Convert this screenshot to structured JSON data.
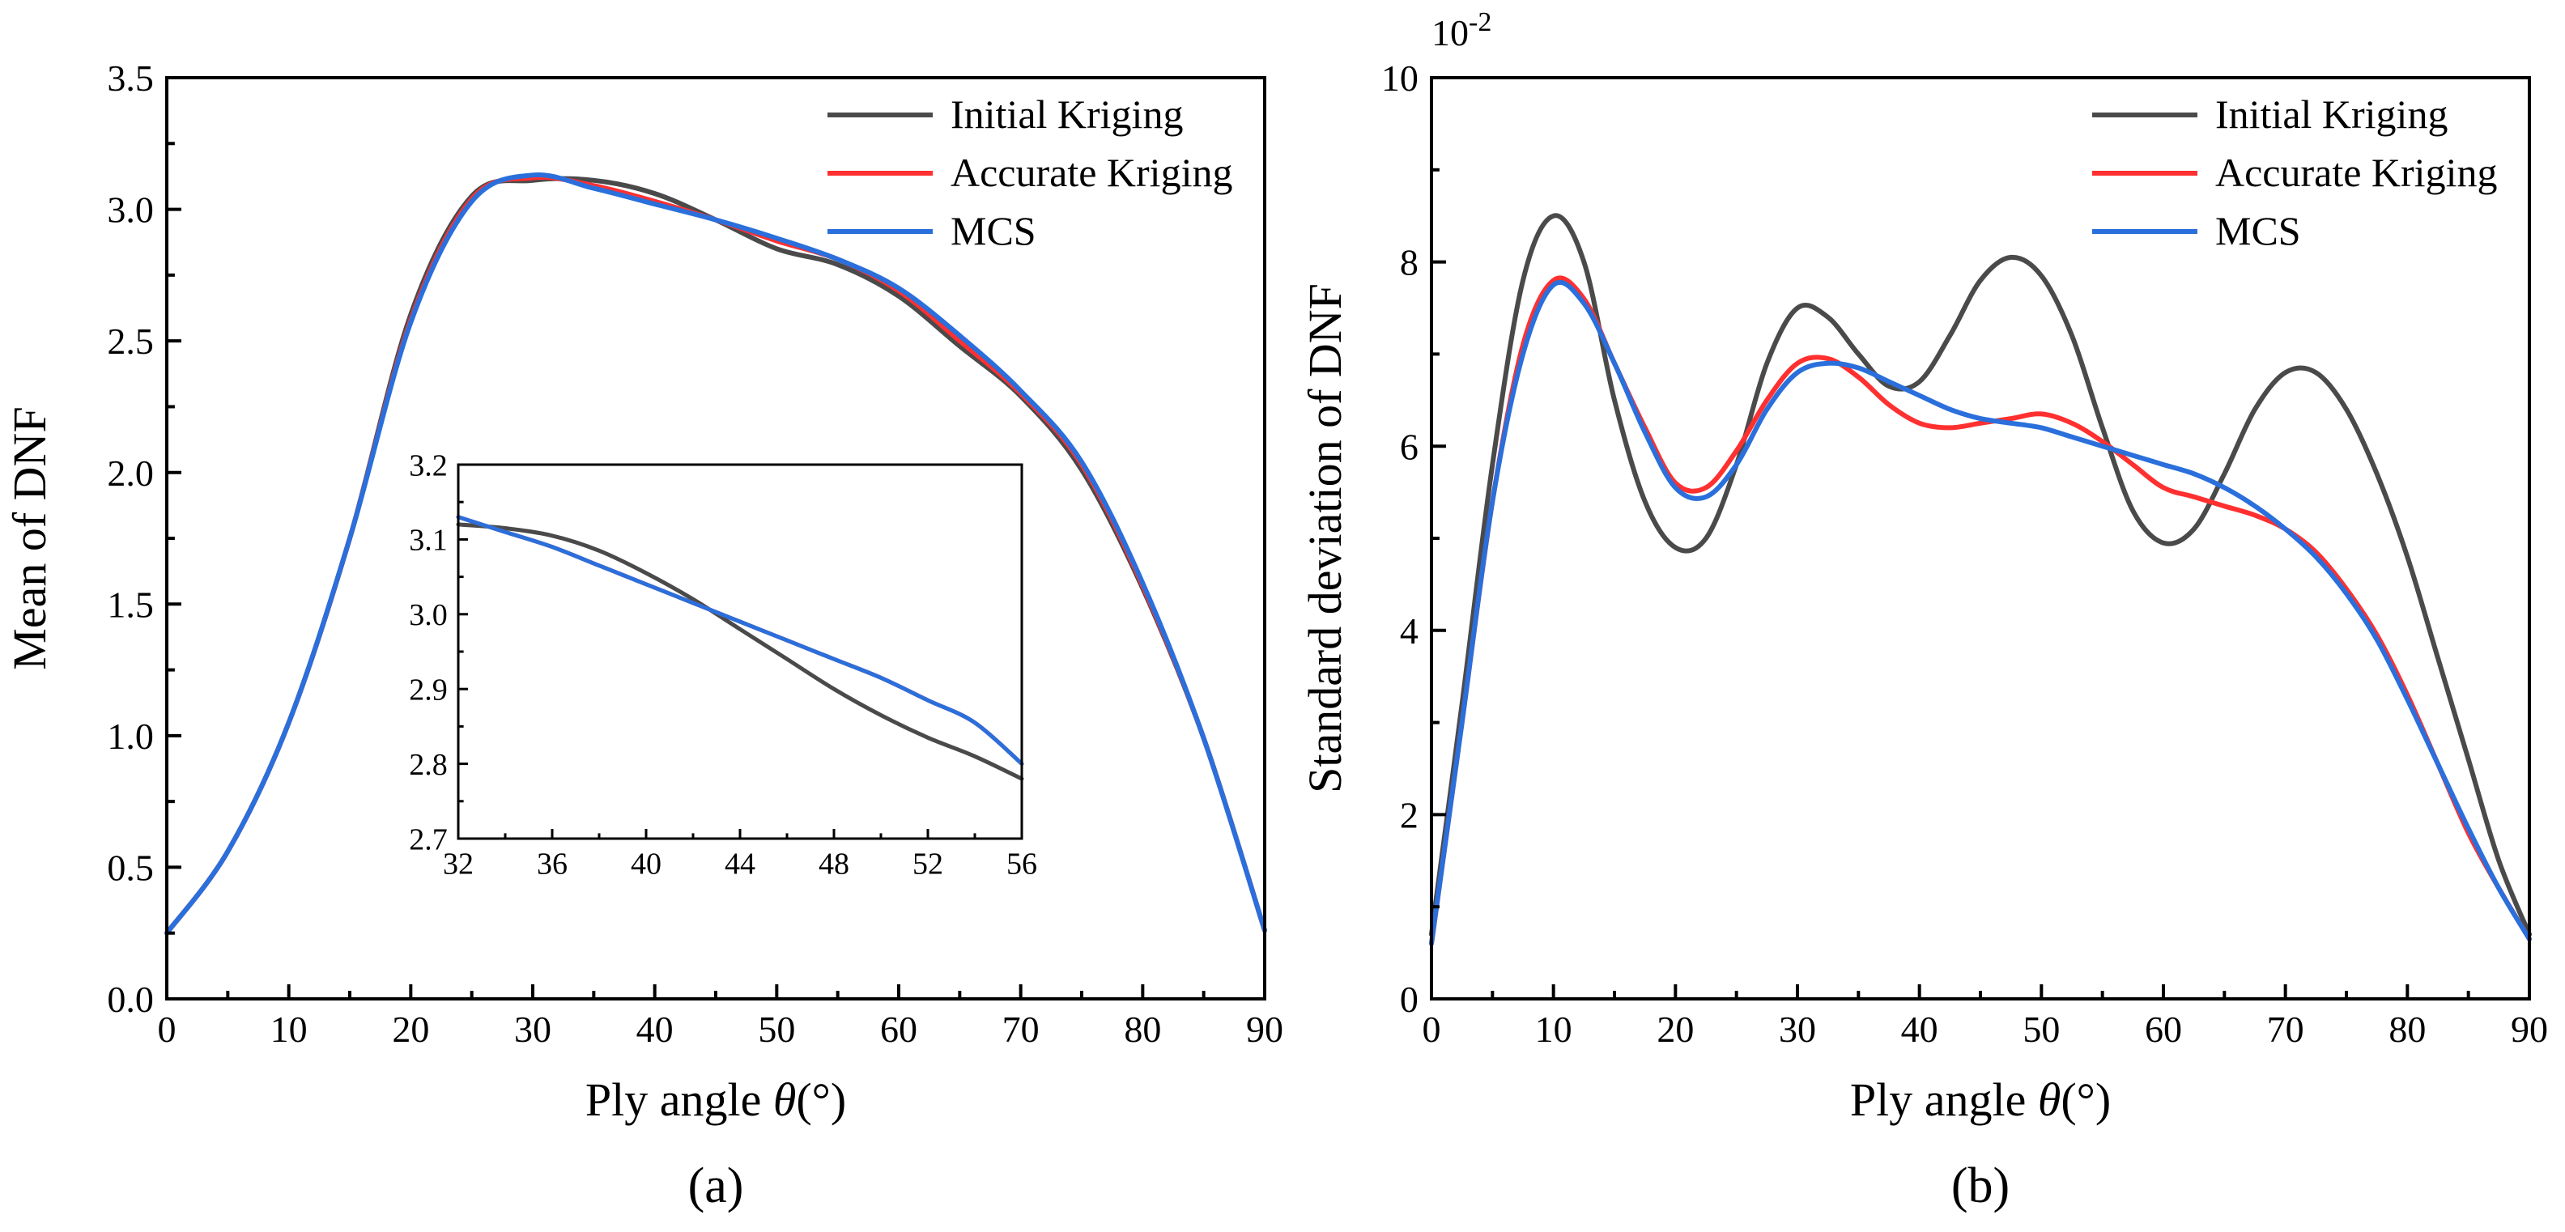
{
  "colors": {
    "initial": "#4a4a4a",
    "accurate": "#ff3030",
    "mcs": "#2a6fdb"
  },
  "chart_data": [
    {
      "id": "a",
      "type": "line",
      "caption": "(a)",
      "xlabel_prefix": "Ply angle ",
      "xlabel_symbol": "θ",
      "xlabel_suffix": "(°)",
      "ylabel": "Mean of DNF",
      "xlim": [
        0,
        90
      ],
      "ylim": [
        0,
        3.5
      ],
      "xticks": [
        0,
        10,
        20,
        30,
        40,
        50,
        60,
        70,
        80,
        90
      ],
      "yticks": [
        "0.0",
        "0.5",
        "1.0",
        "1.5",
        "2.0",
        "2.5",
        "3.0",
        "3.5"
      ],
      "legend_position": "top-right",
      "series": [
        {
          "key": "initial",
          "name": "Initial Kriging",
          "x": [
            0,
            5,
            10,
            15,
            20,
            25,
            30,
            35,
            40,
            45,
            50,
            55,
            60,
            65,
            70,
            75,
            80,
            85,
            90
          ],
          "y": [
            0.25,
            0.56,
            1.05,
            1.75,
            2.6,
            3.05,
            3.11,
            3.11,
            3.06,
            2.96,
            2.85,
            2.79,
            2.67,
            2.48,
            2.29,
            2.01,
            1.56,
            0.99,
            0.26
          ]
        },
        {
          "key": "accurate",
          "name": "Accurate Kriging",
          "x": [
            0,
            5,
            10,
            15,
            20,
            25,
            30,
            35,
            40,
            45,
            50,
            55,
            60,
            65,
            70,
            75,
            80,
            85,
            90
          ],
          "y": [
            0.25,
            0.56,
            1.05,
            1.75,
            2.58,
            3.04,
            3.12,
            3.09,
            3.03,
            2.96,
            2.88,
            2.81,
            2.69,
            2.5,
            2.3,
            2.03,
            1.57,
            0.99,
            0.26
          ]
        },
        {
          "key": "mcs",
          "name": "MCS",
          "x": [
            0,
            5,
            10,
            15,
            20,
            25,
            30,
            35,
            40,
            45,
            50,
            55,
            60,
            65,
            70,
            75,
            80,
            85,
            90
          ],
          "y": [
            0.25,
            0.56,
            1.05,
            1.75,
            2.57,
            3.03,
            3.13,
            3.08,
            3.02,
            2.96,
            2.89,
            2.81,
            2.7,
            2.52,
            2.31,
            2.04,
            1.58,
            0.99,
            0.26
          ]
        }
      ],
      "inset": {
        "xlim": [
          32,
          56
        ],
        "ylim": [
          2.7,
          3.2
        ],
        "xticks": [
          32,
          36,
          40,
          44,
          48,
          52,
          56
        ],
        "yticks": [
          "2.7",
          "2.8",
          "2.9",
          "3.0",
          "3.1",
          "3.2"
        ],
        "series": [
          {
            "key": "initial",
            "x": [
              32,
              34,
              36,
              38,
              40,
              42,
              44,
              46,
              48,
              50,
              52,
              54,
              56
            ],
            "y": [
              3.12,
              3.115,
              3.105,
              3.085,
              3.055,
              3.02,
              2.98,
              2.94,
              2.9,
              2.865,
              2.835,
              2.81,
              2.78
            ]
          },
          {
            "key": "accurate",
            "x": [
              32,
              34,
              36,
              38,
              40,
              42,
              44,
              46,
              48,
              50,
              52,
              54,
              56
            ],
            "y": [
              3.13,
              3.11,
              3.09,
              3.065,
              3.04,
              3.015,
              2.99,
              2.965,
              2.94,
              2.915,
              2.885,
              2.855,
              2.8
            ]
          },
          {
            "key": "mcs",
            "x": [
              32,
              34,
              36,
              38,
              40,
              42,
              44,
              46,
              48,
              50,
              52,
              54,
              56
            ],
            "y": [
              3.13,
              3.11,
              3.09,
              3.065,
              3.04,
              3.015,
              2.99,
              2.965,
              2.94,
              2.915,
              2.885,
              2.855,
              2.8
            ]
          }
        ]
      }
    },
    {
      "id": "b",
      "type": "line",
      "caption": "(b)",
      "xlabel_prefix": "Ply angle ",
      "xlabel_symbol": "θ",
      "xlabel_suffix": "(°)",
      "ylabel": "Standard deviation of DNF",
      "scale_label_base": "10",
      "scale_label_exp": "-2",
      "xlim": [
        0,
        90
      ],
      "ylim": [
        0,
        10
      ],
      "xticks": [
        0,
        10,
        20,
        30,
        40,
        50,
        60,
        70,
        80,
        90
      ],
      "yticks": [
        "0",
        "2",
        "4",
        "6",
        "8",
        "10"
      ],
      "legend_position": "top-right",
      "series": [
        {
          "key": "initial",
          "name": "Initial Kriging",
          "x": [
            0,
            2.5,
            5,
            7.5,
            10,
            12.5,
            15,
            17.5,
            20,
            22.5,
            25,
            27.5,
            30,
            32.5,
            35,
            37.5,
            40,
            42.5,
            45,
            47.5,
            50,
            52.5,
            55,
            57.5,
            60,
            62.5,
            65,
            67.5,
            70,
            72.5,
            75,
            77.5,
            80,
            82.5,
            85,
            87.5,
            90
          ],
          "y": [
            0.7,
            3.2,
            5.8,
            7.8,
            8.5,
            8.0,
            6.5,
            5.4,
            4.9,
            5.0,
            5.8,
            6.9,
            7.5,
            7.4,
            7.0,
            6.65,
            6.7,
            7.2,
            7.8,
            8.05,
            7.85,
            7.2,
            6.2,
            5.3,
            4.95,
            5.1,
            5.7,
            6.4,
            6.8,
            6.8,
            6.4,
            5.7,
            4.8,
            3.7,
            2.6,
            1.5,
            0.7
          ]
        },
        {
          "key": "accurate",
          "name": "Accurate Kriging",
          "x": [
            0,
            2.5,
            5,
            7.5,
            10,
            12.5,
            15,
            17.5,
            20,
            22.5,
            25,
            27.5,
            30,
            32.5,
            35,
            37.5,
            40,
            42.5,
            45,
            47.5,
            50,
            52.5,
            55,
            57.5,
            60,
            62.5,
            65,
            67.5,
            70,
            72.5,
            75,
            77.5,
            80,
            82.5,
            85,
            87.5,
            90
          ],
          "y": [
            0.6,
            3.0,
            5.4,
            7.1,
            7.8,
            7.6,
            6.9,
            6.2,
            5.6,
            5.55,
            5.95,
            6.5,
            6.9,
            6.95,
            6.75,
            6.45,
            6.25,
            6.2,
            6.25,
            6.3,
            6.35,
            6.25,
            6.05,
            5.8,
            5.55,
            5.45,
            5.35,
            5.25,
            5.1,
            4.85,
            4.45,
            3.95,
            3.3,
            2.55,
            1.8,
            1.2,
            0.65
          ]
        },
        {
          "key": "mcs",
          "name": "MCS",
          "x": [
            0,
            2.5,
            5,
            7.5,
            10,
            12.5,
            15,
            17.5,
            20,
            22.5,
            25,
            27.5,
            30,
            32.5,
            35,
            37.5,
            40,
            42.5,
            45,
            47.5,
            50,
            52.5,
            55,
            57.5,
            60,
            62.5,
            65,
            67.5,
            70,
            72.5,
            75,
            77.5,
            80,
            82.5,
            85,
            87.5,
            90
          ],
          "y": [
            0.6,
            3.0,
            5.4,
            7.0,
            7.75,
            7.55,
            6.9,
            6.15,
            5.55,
            5.45,
            5.8,
            6.4,
            6.8,
            6.9,
            6.85,
            6.7,
            6.55,
            6.4,
            6.3,
            6.25,
            6.2,
            6.1,
            6.0,
            5.9,
            5.8,
            5.7,
            5.55,
            5.35,
            5.1,
            4.8,
            4.4,
            3.9,
            3.25,
            2.55,
            1.85,
            1.2,
            0.65
          ]
        }
      ]
    }
  ]
}
